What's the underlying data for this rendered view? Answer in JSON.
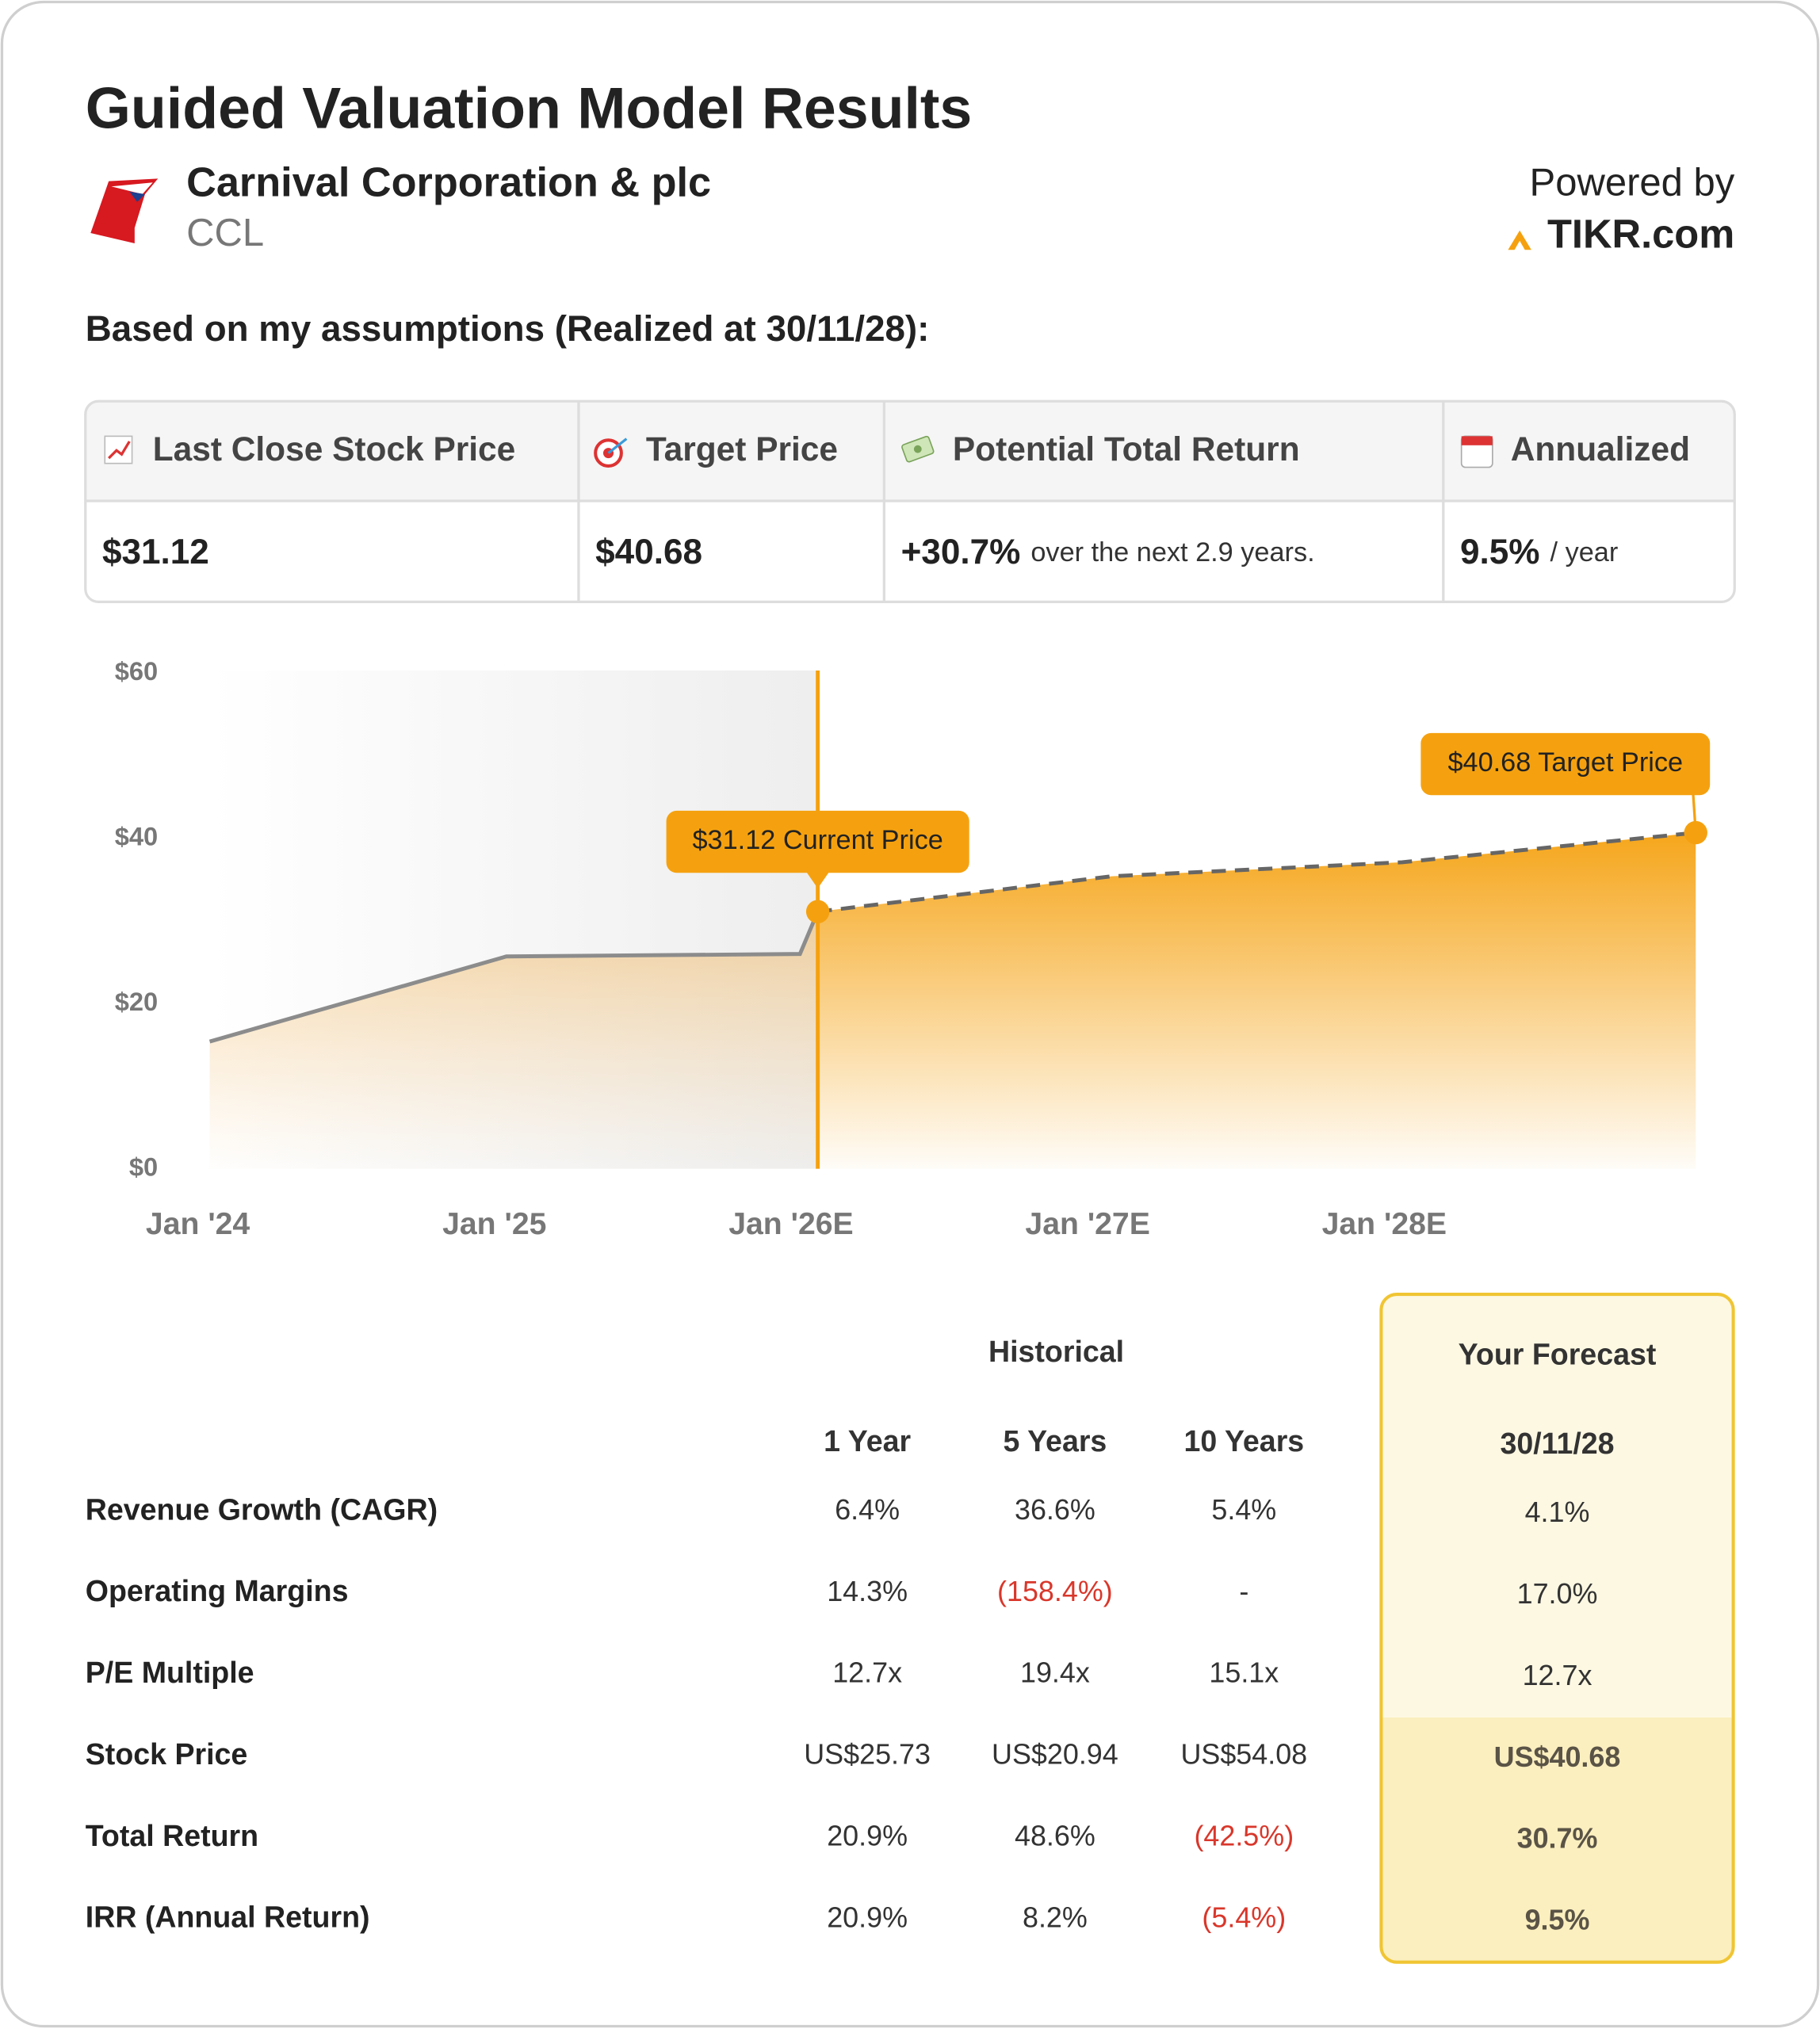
{
  "header": {
    "title": "Guided Valuation Model Results",
    "company": "Carnival Corporation & plc",
    "ticker": "CCL",
    "powered_by": "Powered by",
    "brand": "TIKR.com"
  },
  "subtitle": "Based on my assumptions (Realized at 30/11/28):",
  "summary": {
    "headers": [
      "Last Close Stock Price",
      "Target Price",
      "Potential Total Return",
      "Annualized"
    ],
    "values": [
      {
        "main": "$31.12"
      },
      {
        "main": "$40.68"
      },
      {
        "main": "+30.7%",
        "note": "over the next 2.9 years."
      },
      {
        "main": "9.5%",
        "note": "/ year"
      }
    ]
  },
  "chart_data": {
    "type": "line",
    "x": [
      2024.04,
      2025.04,
      2026.03,
      2026.09,
      2027.08,
      2028.06,
      2029.05
    ],
    "xlim": [
      2024.04,
      2029.05
    ],
    "xticks": [
      {
        "value": 2024,
        "label": "Jan '24"
      },
      {
        "value": 2025,
        "label": "Jan '25"
      },
      {
        "value": 2026,
        "label": "Jan '26E"
      },
      {
        "value": 2027,
        "label": "Jan '27E"
      },
      {
        "value": 2028,
        "label": "Jan '28E"
      }
    ],
    "ylim": [
      0,
      60
    ],
    "yticks": [
      {
        "value": 0,
        "label": "$0"
      },
      {
        "value": 20,
        "label": "$20"
      },
      {
        "value": 40,
        "label": "$40"
      },
      {
        "value": 60,
        "label": "$60"
      }
    ],
    "series": [
      {
        "color": "#8c8c8c",
        "dashed": false,
        "values": [
          15.4,
          25.7,
          26.0,
          31.12,
          null,
          null,
          null
        ]
      },
      {
        "color": "#f5a10f",
        "dashed": true,
        "values": [
          null,
          null,
          null,
          31.12,
          35.4,
          37.1,
          40.68
        ]
      }
    ],
    "annotations": [
      "$31.12 Current Price",
      "$40.68 Target Price"
    ],
    "grid": false
  },
  "metrics": {
    "group_headers": [
      "Historical",
      "Your Forecast"
    ],
    "columns": [
      "1 Year",
      "5 Years",
      "10 Years",
      "30/11/28"
    ],
    "rows": [
      {
        "label": "Revenue Growth (CAGR)",
        "cells": [
          "6.4%",
          "36.6%",
          "5.4%",
          "4.1%"
        ]
      },
      {
        "label": "Operating Margins",
        "cells": [
          "14.3%",
          "(158.4%)",
          "-",
          "17.0%"
        ]
      },
      {
        "label": "P/E Multiple",
        "cells": [
          "12.7x",
          "19.4x",
          "15.1x",
          "12.7x"
        ]
      },
      {
        "label": "Stock Price",
        "cells": [
          "US$25.73",
          "US$20.94",
          "US$54.08",
          "US$40.68"
        ]
      },
      {
        "label": "Total Return",
        "cells": [
          "20.9%",
          "48.6%",
          "(42.5%)",
          "30.7%"
        ]
      },
      {
        "label": "IRR (Annual Return)",
        "cells": [
          "20.9%",
          "8.2%",
          "(5.4%)",
          "9.5%"
        ]
      }
    ]
  }
}
